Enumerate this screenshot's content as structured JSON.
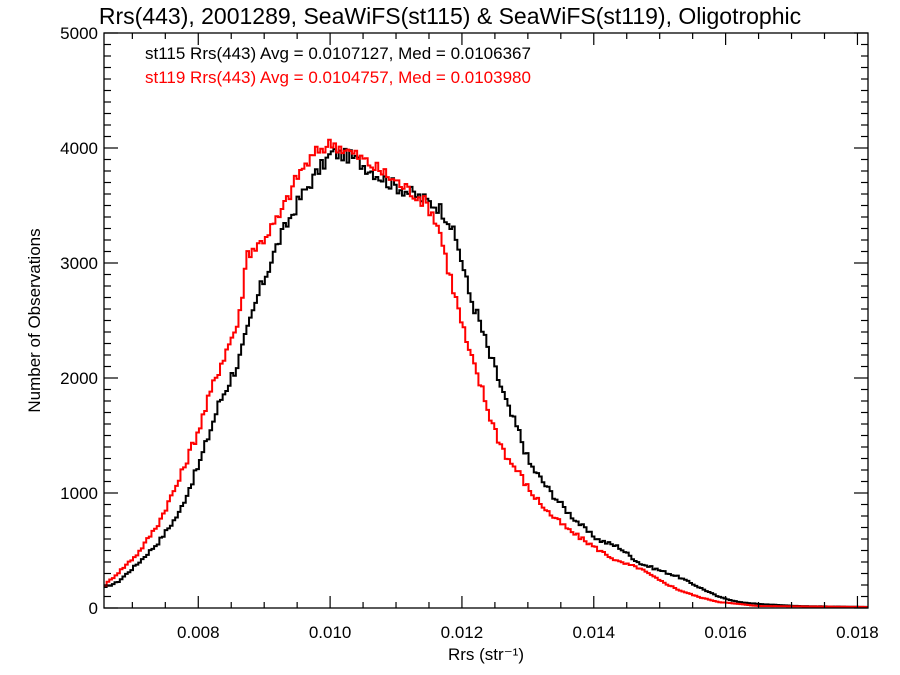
{
  "chart_data": {
    "type": "line",
    "style": "step-histogram",
    "title": "Rrs(443), 2001289, SeaWiFS(st115) & SeaWiFS(st119), Oligotrophic",
    "xlabel": "Rrs (str⁻¹)",
    "ylabel": "Number of Observations",
    "xlim": [
      0.00657,
      0.01816
    ],
    "ylim": [
      0,
      5000
    ],
    "x_ticks": [
      0.008,
      0.01,
      0.012,
      0.014,
      0.016,
      0.018
    ],
    "x_tick_labels": [
      "0.008",
      "0.010",
      "0.012",
      "0.014",
      "0.016",
      "0.018"
    ],
    "x_minor_step": 0.0005,
    "y_ticks": [
      0,
      1000,
      2000,
      3000,
      4000,
      5000
    ],
    "y_tick_labels": [
      "0",
      "1000",
      "2000",
      "3000",
      "4000",
      "5000"
    ],
    "y_minor_step": 100,
    "grid": false,
    "legend_placement": "top-left",
    "bin_width": 4e-05,
    "series": [
      {
        "name": "st115",
        "label": "st115 Rrs(443) Avg = 0.0107127, Med = 0.0106367",
        "color": "#000000",
        "x": [
          0.00657,
          0.00678,
          0.00709,
          0.0074,
          0.00771,
          0.00802,
          0.00832,
          0.00862,
          0.00892,
          0.00923,
          0.00953,
          0.00983,
          0.01003,
          0.01033,
          0.0109,
          0.01135,
          0.01165,
          0.0118,
          0.01196,
          0.01211,
          0.01226,
          0.01241,
          0.01256,
          0.01271,
          0.01287,
          0.01302,
          0.01332,
          0.01362,
          0.01393,
          0.01408,
          0.01438,
          0.01469,
          0.01499,
          0.01529,
          0.01559,
          0.0159,
          0.0162,
          0.0165,
          0.0171,
          0.01816
        ],
        "y": [
          174,
          226,
          390,
          574,
          826,
          1260,
          1783,
          2157,
          2740,
          3200,
          3548,
          3809,
          3957,
          3922,
          3696,
          3574,
          3487,
          3374,
          3113,
          2740,
          2504,
          2217,
          1983,
          1722,
          1522,
          1261,
          1026,
          826,
          652,
          591,
          530,
          391,
          330,
          270,
          183,
          96,
          52,
          35,
          17,
          9
        ]
      },
      {
        "name": "st119",
        "label": "st119 Rrs(443) Avg = 0.0104757, Med = 0.0103980",
        "color": "#ff0000",
        "x": [
          0.00657,
          0.00678,
          0.00709,
          0.0074,
          0.00771,
          0.00802,
          0.00832,
          0.00862,
          0.00874,
          0.00892,
          0.00923,
          0.00953,
          0.00983,
          0.01003,
          0.01044,
          0.0109,
          0.01135,
          0.0115,
          0.01165,
          0.0118,
          0.01196,
          0.01211,
          0.01226,
          0.01241,
          0.01256,
          0.01271,
          0.01287,
          0.01302,
          0.01332,
          0.01362,
          0.01378,
          0.01408,
          0.01438,
          0.01469,
          0.01499,
          0.01529,
          0.01559,
          0.0159,
          0.0162,
          0.0165,
          0.01816
        ],
        "y": [
          191,
          304,
          478,
          739,
          1113,
          1574,
          2096,
          2504,
          3087,
          3157,
          3400,
          3783,
          3983,
          4043,
          3922,
          3748,
          3574,
          3487,
          3313,
          2939,
          2565,
          2217,
          1983,
          1696,
          1461,
          1287,
          1174,
          1026,
          826,
          678,
          617,
          504,
          400,
          348,
          243,
          157,
          96,
          52,
          35,
          17,
          9
        ]
      }
    ]
  }
}
